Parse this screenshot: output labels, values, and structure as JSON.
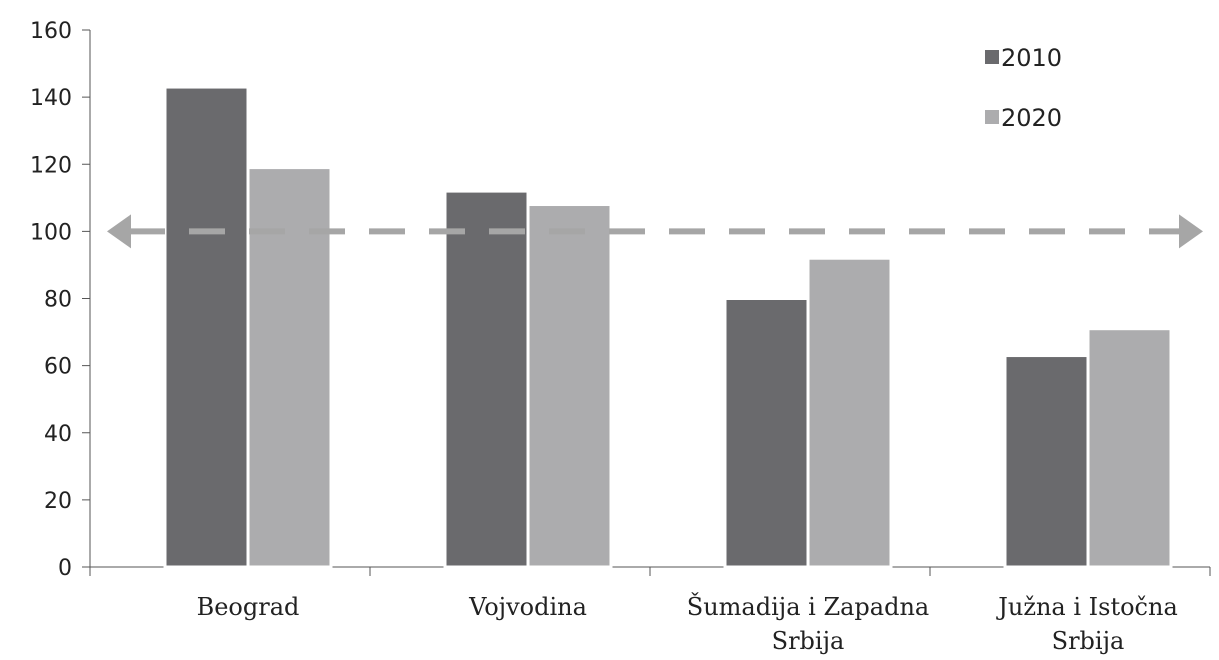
{
  "chart_data": {
    "type": "bar",
    "categories": [
      [
        "Beograd"
      ],
      [
        "Vojvodina"
      ],
      [
        "Šumadija i Zapadna",
        "Srbija"
      ],
      [
        "Južna i Istočna",
        "Srbija"
      ]
    ],
    "series": [
      {
        "name": "2010",
        "values": [
          143,
          112,
          80,
          63
        ],
        "color": "#6a6a6d"
      },
      {
        "name": "2020",
        "values": [
          119,
          108,
          92,
          71
        ],
        "color": "#acacae"
      }
    ],
    "ylim": [
      0,
      160
    ],
    "yticks": [
      0,
      20,
      40,
      60,
      80,
      100,
      120,
      140,
      160
    ],
    "reference_line": {
      "value": 100,
      "style": "dashed double-arrow",
      "color": "#a6a6a6"
    },
    "grid": false,
    "legend_position": "top-right",
    "title": "",
    "xlabel": "",
    "ylabel": ""
  }
}
